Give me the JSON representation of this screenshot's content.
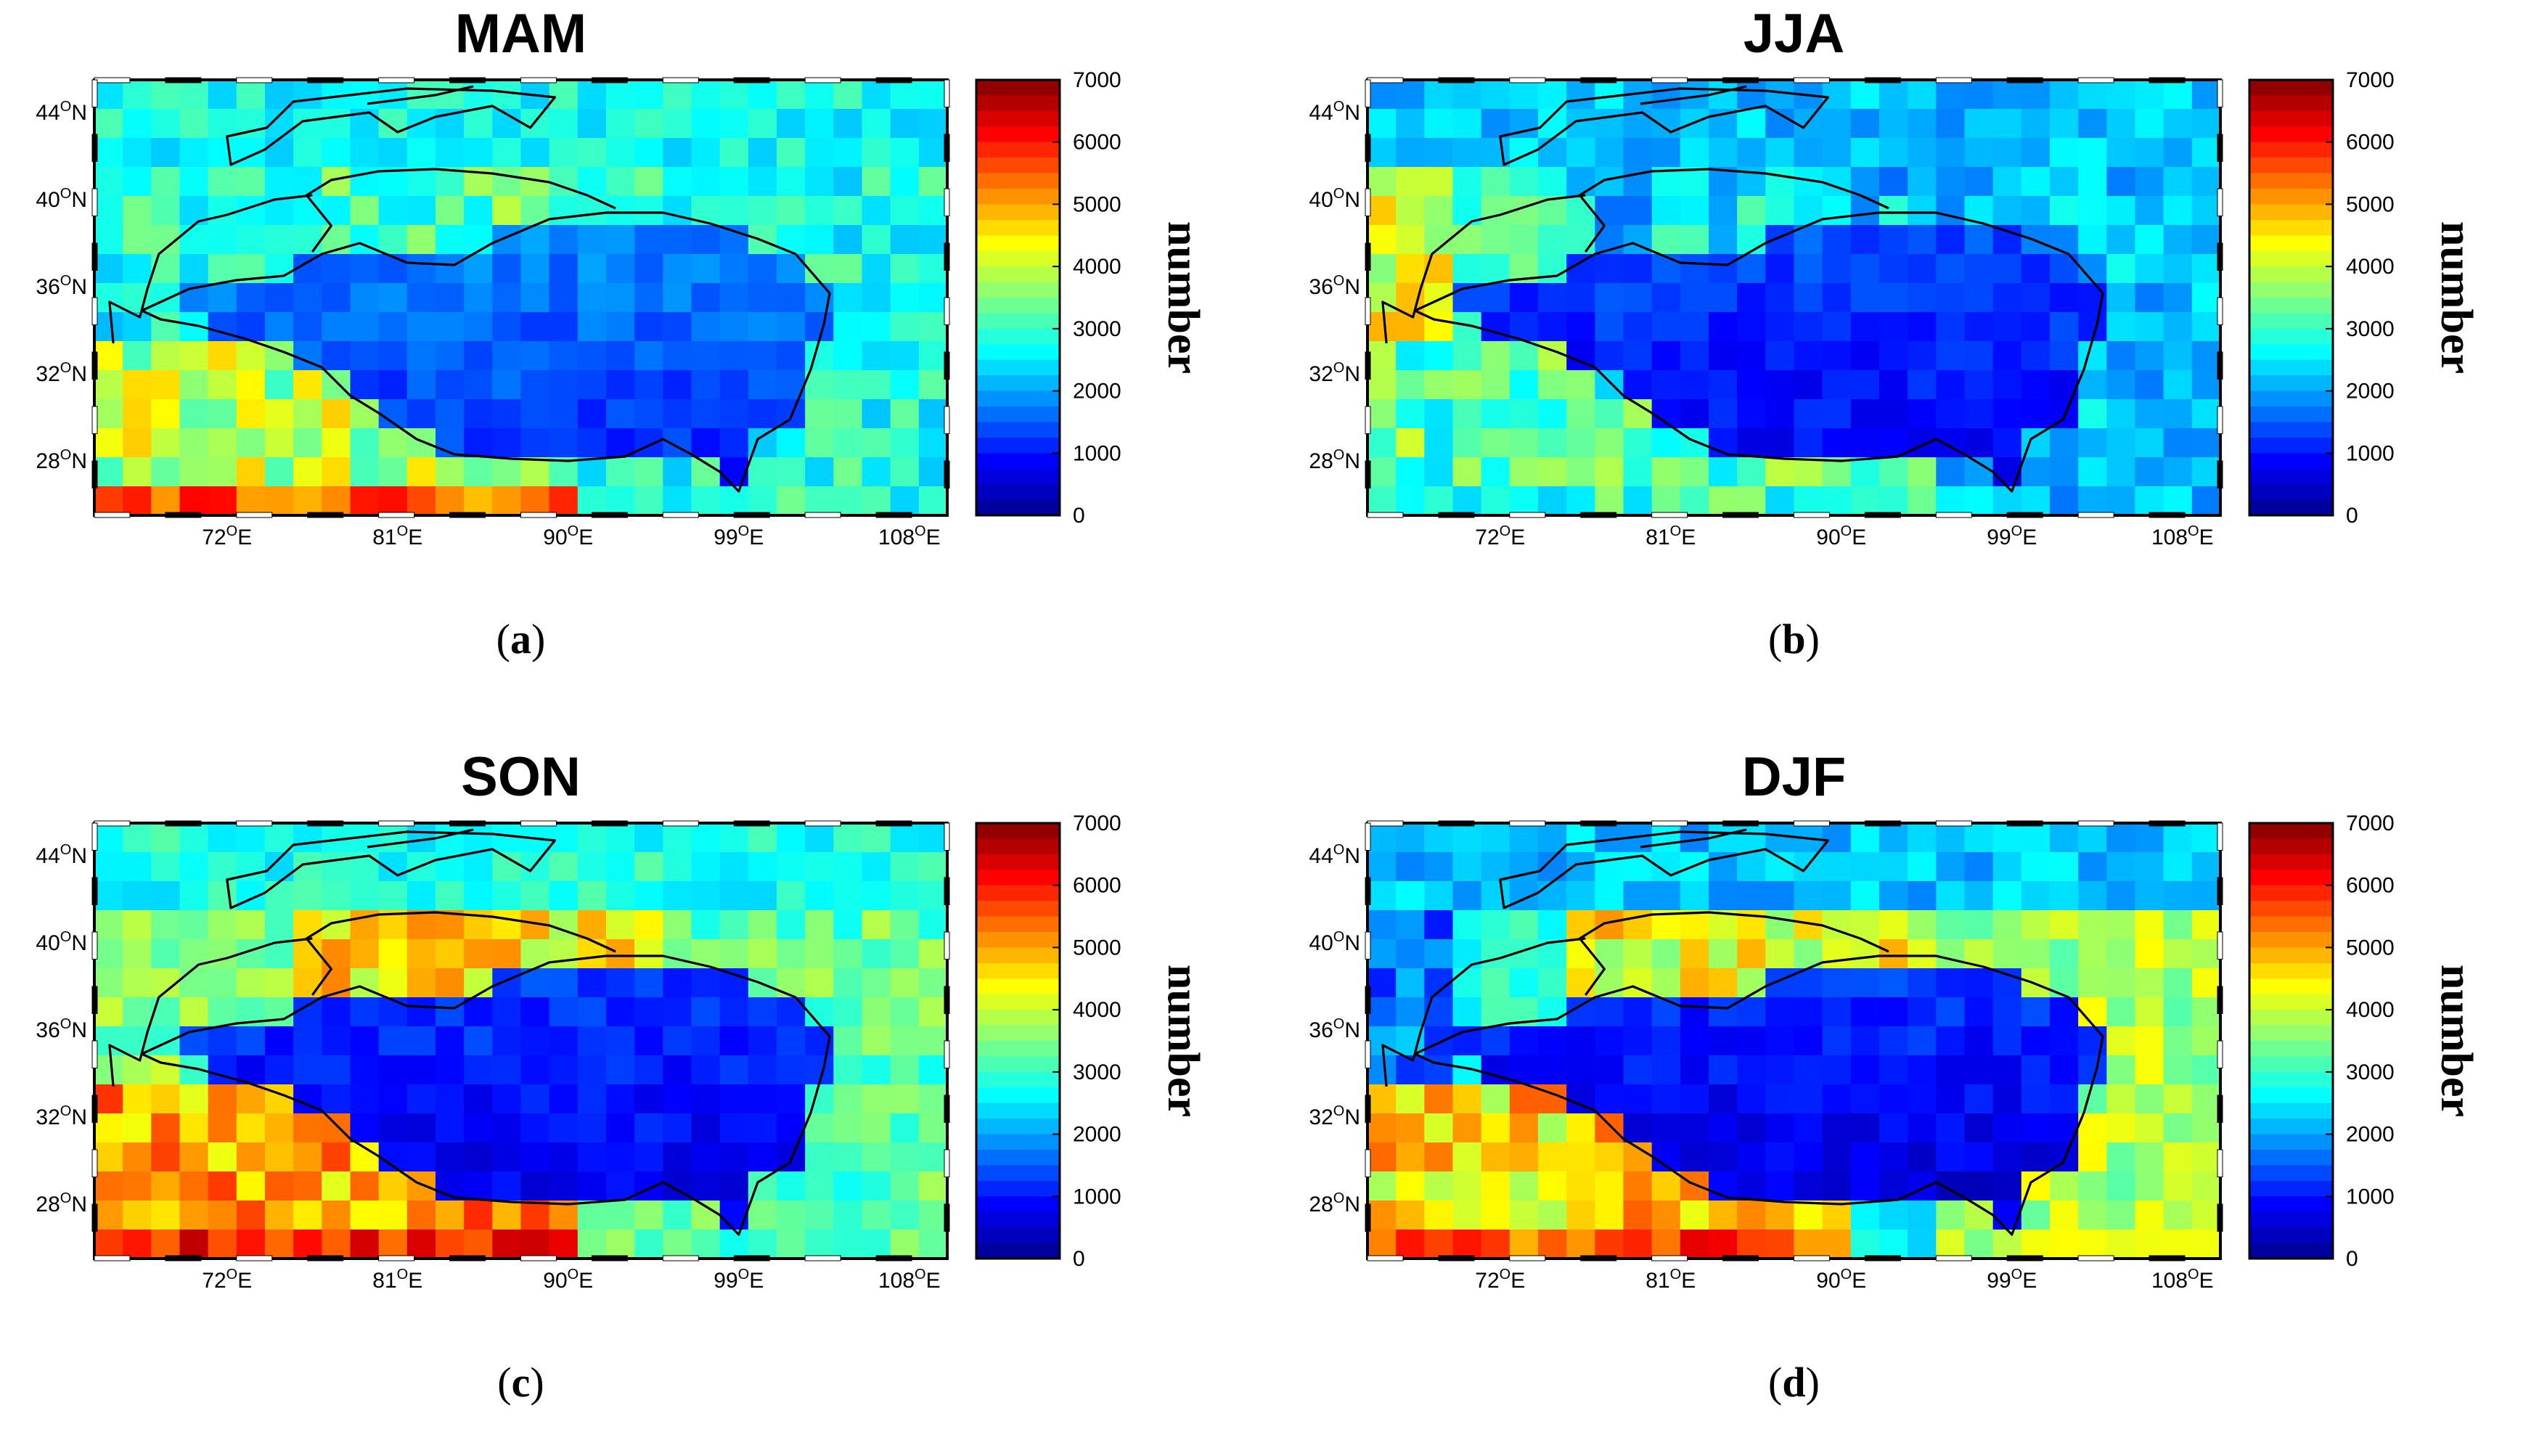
{
  "figure": {
    "colors": {
      "jet_stops": [
        "#00008f",
        "#0000ff",
        "#0080ff",
        "#00ffff",
        "#80ff80",
        "#ffff00",
        "#ff8000",
        "#ff0000",
        "#800000"
      ],
      "outline": "#000000",
      "frame": "#000000",
      "background": "#ffffff"
    },
    "shared_axes": {
      "x_ticks": [
        {
          "value": 72,
          "deg": "72",
          "sup": "O",
          "hem": "E"
        },
        {
          "value": 81,
          "deg": "81",
          "sup": "O",
          "hem": "E"
        },
        {
          "value": 90,
          "deg": "90",
          "sup": "O",
          "hem": "E"
        },
        {
          "value": 99,
          "deg": "99",
          "sup": "O",
          "hem": "E"
        },
        {
          "value": 108,
          "deg": "108",
          "sup": "O",
          "hem": "E"
        }
      ],
      "y_ticks": [
        {
          "value": 44,
          "deg": "44",
          "sup": "O",
          "hem": "N"
        },
        {
          "value": 40,
          "deg": "40",
          "sup": "O",
          "hem": "N"
        },
        {
          "value": 36,
          "deg": "36",
          "sup": "O",
          "hem": "N"
        },
        {
          "value": 32,
          "deg": "32",
          "sup": "O",
          "hem": "N"
        },
        {
          "value": 28,
          "deg": "28",
          "sup": "O",
          "hem": "N"
        }
      ],
      "xlim": [
        65,
        110
      ],
      "ylim": [
        25.5,
        45.5
      ],
      "colorbar_label": "number",
      "colorbar_ticks": [
        7000,
        6000,
        5000,
        4000,
        3000,
        2000,
        1000,
        0
      ],
      "colorbar_range": [
        0,
        7000
      ]
    }
  },
  "chart_data": [
    {
      "type": "heatmap",
      "title": "MAM",
      "caption_letter": "a",
      "xlabel": "",
      "ylabel": "",
      "grid": "lon 65-110 x lat 25.5-45.5, approx 1.5 x 1.3 deg cells",
      "zones": {
        "basin": 1300,
        "tarim": 3200,
        "north": 2700,
        "india": 3900,
        "east": 2800,
        "west": 2800,
        "south_edge": 5500
      },
      "colorbar_label": "number"
    },
    {
      "type": "heatmap",
      "title": "JJA",
      "caption_letter": "b",
      "xlabel": "",
      "ylabel": "",
      "grid": "lon 65-110 x lat 25.5-45.5, approx 1.5 x 1.3 deg cells",
      "zones": {
        "basin": 900,
        "tarim": 2400,
        "north": 2200,
        "india": 3200,
        "east": 2200,
        "west": 4200,
        "south_edge": 3000
      },
      "colorbar_label": "number"
    },
    {
      "type": "heatmap",
      "title": "SON",
      "caption_letter": "c",
      "xlabel": "",
      "ylabel": "",
      "grid": "lon 65-110 x lat 25.5-45.5, approx 1.5 x 1.3 deg cells",
      "zones": {
        "basin": 800,
        "tarim": 4500,
        "north": 2800,
        "india": 5000,
        "east": 3300,
        "west": 3600,
        "south_edge": 6000
      },
      "colorbar_label": "number"
    },
    {
      "type": "heatmap",
      "title": "DJF",
      "caption_letter": "d",
      "xlabel": "",
      "ylabel": "",
      "grid": "lon 65-110 x lat 25.5-45.5, approx 1.5 x 1.3 deg cells",
      "zones": {
        "basin": 700,
        "tarim": 4300,
        "north": 2200,
        "india": 4600,
        "east": 3800,
        "west": 1600,
        "south_edge": 5600
      },
      "colorbar_label": "number"
    }
  ]
}
